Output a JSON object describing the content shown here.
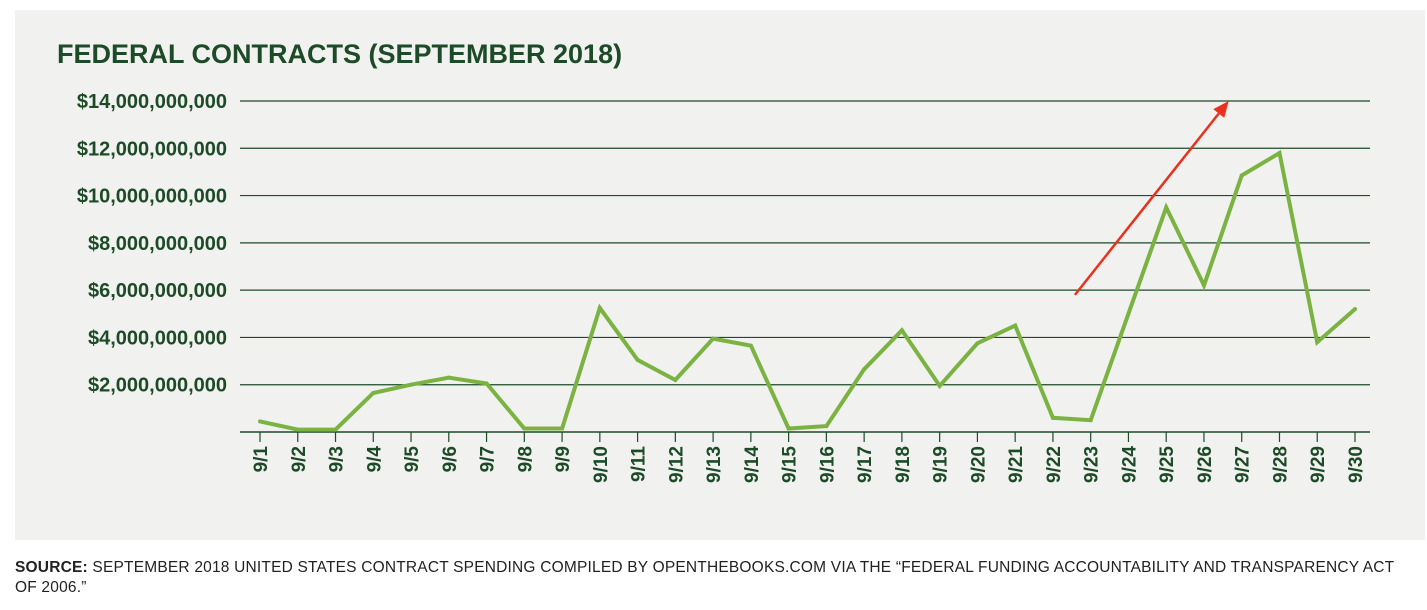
{
  "chart_data": {
    "type": "line",
    "title": "FEDERAL CONTRACTS (SEPTEMBER 2018)",
    "xlabel": "",
    "ylabel": "",
    "categories": [
      "9/1",
      "9/2",
      "9/3",
      "9/4",
      "9/5",
      "9/6",
      "9/7",
      "9/8",
      "9/9",
      "9/10",
      "9/11",
      "9/12",
      "9/13",
      "9/14",
      "9/15",
      "9/16",
      "9/17",
      "9/18",
      "9/19",
      "9/20",
      "9/21",
      "9/22",
      "9/23",
      "9/24",
      "9/25",
      "9/26",
      "9/27",
      "9/28",
      "9/29",
      "9/30"
    ],
    "series": [
      {
        "values": [
          450000000,
          100000000,
          100000000,
          1650000000,
          2000000000,
          2300000000,
          2050000000,
          150000000,
          150000000,
          5250000000,
          3050000000,
          2200000000,
          3950000000,
          3650000000,
          150000000,
          250000000,
          2650000000,
          4300000000,
          1950000000,
          3750000000,
          4500000000,
          600000000,
          500000000,
          5000000000,
          9500000000,
          6200000000,
          10850000000,
          11800000000,
          3800000000,
          5200000000
        ],
        "color": "#7bb342"
      }
    ],
    "yticks": [
      2000000000,
      4000000000,
      6000000000,
      8000000000,
      10000000000,
      12000000000,
      14000000000
    ],
    "ytick_labels": [
      "$2,000,000,000",
      "$4,000,000,000",
      "$6,000,000,000",
      "$8,000,000,000",
      "$10,000,000,000",
      "$12,000,000,000",
      "$14,000,000,000"
    ],
    "ylim": [
      0,
      14000000000
    ],
    "grid": true,
    "annotation": {
      "type": "trend-arrow",
      "color": "#e8321e",
      "from": {
        "x": "9/22",
        "y": 5800000000
      },
      "to": {
        "x": "9/27",
        "y": 14000000000
      }
    },
    "colors": {
      "gridline": "#1d4a27",
      "text": "#1d4a27",
      "background": "#f1f1f0"
    }
  },
  "source": {
    "label": "SOURCE:",
    "text": "SEPTEMBER 2018 UNITED STATES CONTRACT SPENDING COMPILED BY OPENTHEBOOKS.COM VIA THE “FEDERAL FUNDING ACCOUNTABILITY AND TRANSPARENCY ACT OF 2006.”"
  }
}
